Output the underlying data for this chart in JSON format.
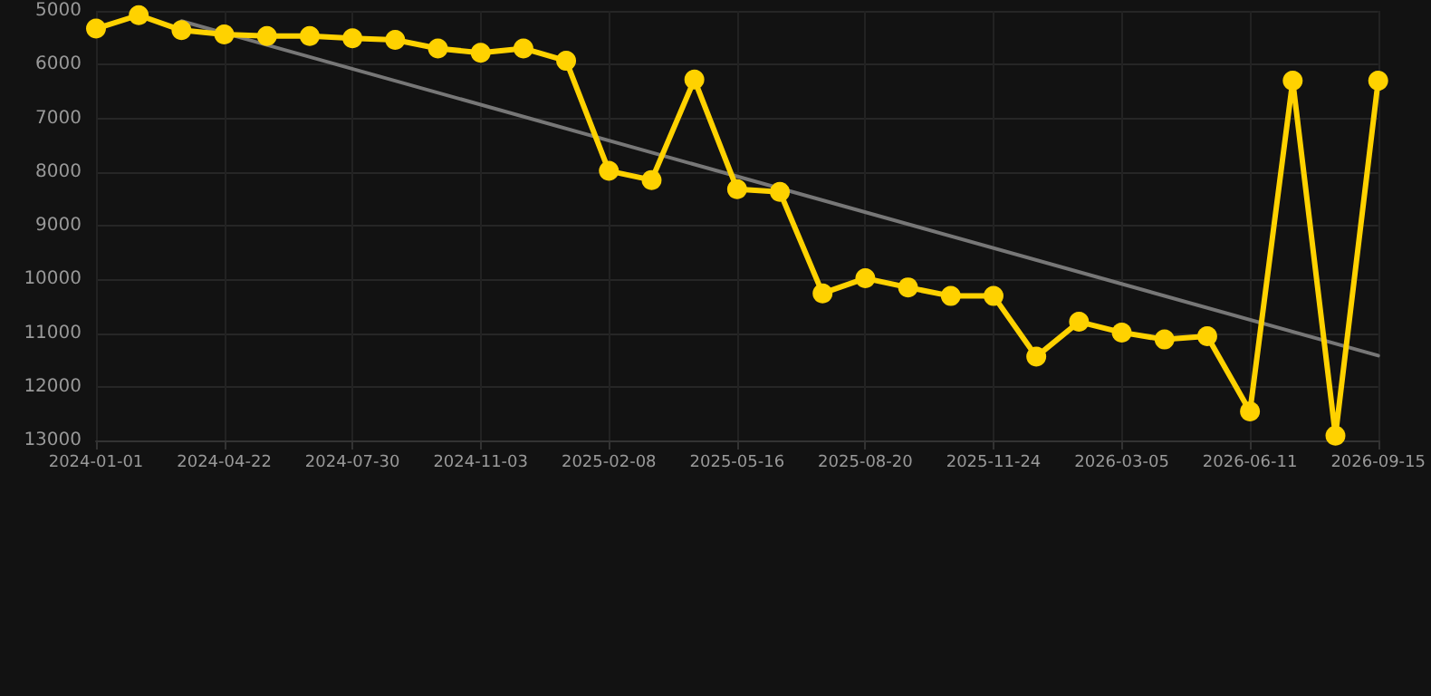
{
  "chart_data": {
    "type": "line",
    "categories": [
      "2024-01-01",
      null,
      null,
      "2024-04-22",
      null,
      null,
      "2024-07-30",
      null,
      null,
      "2024-11-03",
      null,
      null,
      "2025-02-08",
      null,
      null,
      "2025-05-16",
      null,
      null,
      "2025-08-20",
      null,
      null,
      "2025-11-24",
      null,
      null,
      "2026-03-05",
      null,
      null,
      "2026-06-11",
      null,
      null,
      "2026-09-15"
    ],
    "series": [
      {
        "color": "#ffd200",
        "values": [
          5330,
          5080,
          5360,
          5440,
          5470,
          5470,
          5510,
          5540,
          5700,
          5780,
          5700,
          5930,
          7980,
          8150,
          6280,
          8320,
          8370,
          10260,
          9980,
          10150,
          10310,
          10310,
          11440,
          10790,
          10990,
          11120,
          11060,
          12460,
          6300,
          12910,
          6300
        ]
      },
      {
        "color": "#777777",
        "marker": "none",
        "values": [
          null,
          null,
          5190,
          null,
          null,
          null,
          null,
          null,
          null,
          null,
          null,
          null,
          null,
          null,
          null,
          null,
          null,
          null,
          null,
          null,
          null,
          null,
          null,
          null,
          null,
          null,
          null,
          null,
          null,
          null,
          11420
        ]
      }
    ],
    "ylim": [
      13000,
      5000
    ],
    "yticks": [
      5000,
      6000,
      7000,
      8000,
      9000,
      10000,
      11000,
      12000,
      13000
    ],
    "grid": true,
    "marker": "circle",
    "line_style": "solid"
  }
}
